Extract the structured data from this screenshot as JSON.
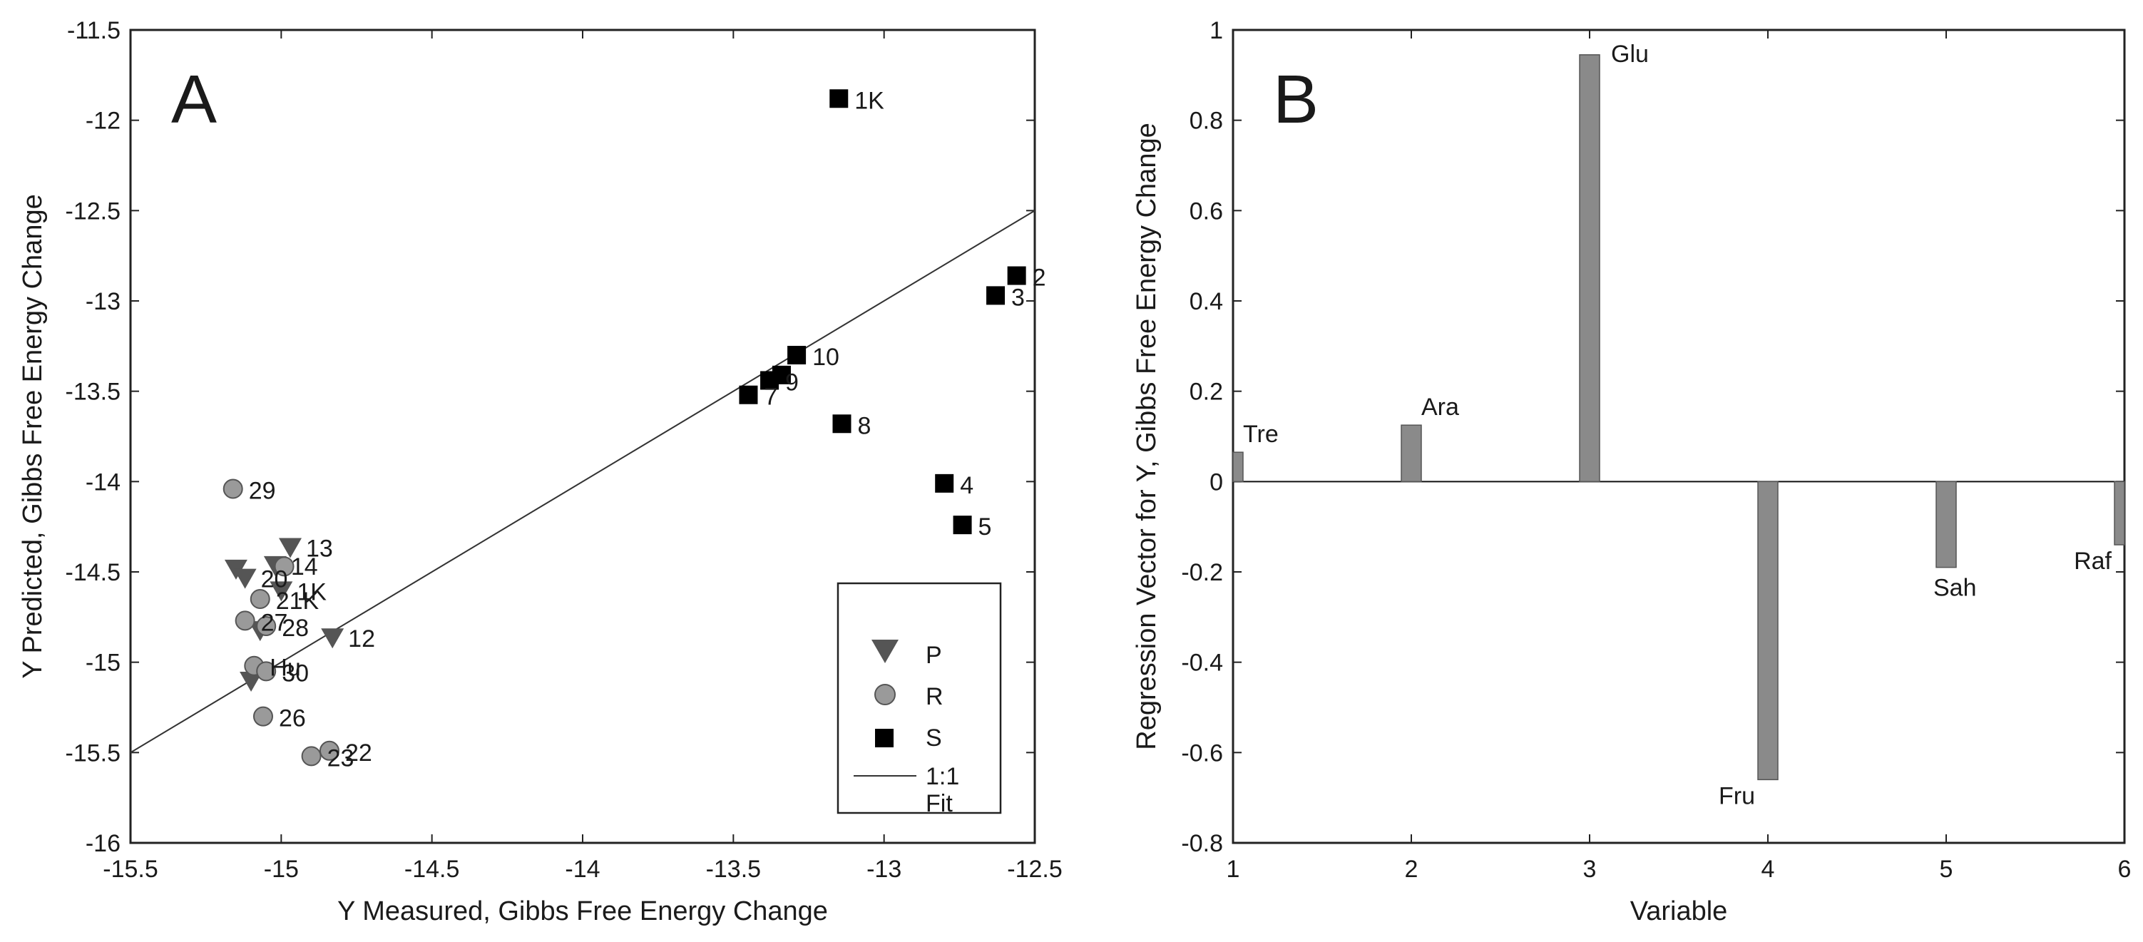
{
  "chart_data": [
    {
      "type": "scatter",
      "panel_label": "A",
      "xlabel": "Y Measured, Gibbs Free Energy Change",
      "ylabel": "Y Predicted, Gibbs Free Energy Change",
      "xlim": [
        -15.5,
        -12.5
      ],
      "ylim": [
        -16,
        -11.5
      ],
      "xticks": [
        -15.5,
        -15,
        -14.5,
        -14,
        -13.5,
        -13,
        -12.5
      ],
      "yticks": [
        -16,
        -15.5,
        -15,
        -14.5,
        -14,
        -13.5,
        -13,
        -12.5,
        -12,
        -11.5
      ],
      "legend_position": "bottom-right",
      "series": [
        {
          "name": "P",
          "marker": "triangle-down",
          "color": "#555555",
          "points": [
            {
              "x": -14.97,
              "y": -14.36,
              "label": "13"
            },
            {
              "x": -15.02,
              "y": -14.46,
              "label": "14"
            },
            {
              "x": -15.15,
              "y": -14.48,
              "label": ""
            },
            {
              "x": -15.12,
              "y": -14.53,
              "label": "20"
            },
            {
              "x": -15.0,
              "y": -14.6,
              "label": "1K"
            },
            {
              "x": -15.07,
              "y": -14.82,
              "label": ""
            },
            {
              "x": -14.83,
              "y": -14.86,
              "label": "12"
            },
            {
              "x": -15.1,
              "y": -15.1,
              "label": ""
            }
          ]
        },
        {
          "name": "R",
          "marker": "circle",
          "color": "#9a9a9a",
          "points": [
            {
              "x": -15.16,
              "y": -14.04,
              "label": "29"
            },
            {
              "x": -14.99,
              "y": -14.47,
              "label": ""
            },
            {
              "x": -15.07,
              "y": -14.65,
              "label": "21K"
            },
            {
              "x": -15.12,
              "y": -14.77,
              "label": "27"
            },
            {
              "x": -15.05,
              "y": -14.8,
              "label": "28"
            },
            {
              "x": -15.09,
              "y": -15.02,
              "label": "Hu"
            },
            {
              "x": -15.05,
              "y": -15.05,
              "label": "30"
            },
            {
              "x": -15.06,
              "y": -15.3,
              "label": "26"
            },
            {
              "x": -14.9,
              "y": -15.52,
              "label": "23"
            },
            {
              "x": -14.84,
              "y": -15.49,
              "label": "22"
            }
          ]
        },
        {
          "name": "S",
          "marker": "square",
          "color": "#000000",
          "points": [
            {
              "x": -13.15,
              "y": -11.88,
              "label": "1K"
            },
            {
              "x": -12.56,
              "y": -12.86,
              "label": "2"
            },
            {
              "x": -12.63,
              "y": -12.97,
              "label": "3"
            },
            {
              "x": -13.29,
              "y": -13.3,
              "label": "10"
            },
            {
              "x": -13.34,
              "y": -13.41,
              "label": ""
            },
            {
              "x": -13.38,
              "y": -13.44,
              "label": "9"
            },
            {
              "x": -13.45,
              "y": -13.52,
              "label": "7"
            },
            {
              "x": -13.14,
              "y": -13.68,
              "label": "8"
            },
            {
              "x": -12.8,
              "y": -14.01,
              "label": "4"
            },
            {
              "x": -12.74,
              "y": -14.24,
              "label": "5"
            }
          ]
        }
      ],
      "fit_line": {
        "name": "1:1 Fit",
        "legend_line1": "1:1",
        "legend_line2": "Fit",
        "x": [
          -15.5,
          -12.5
        ],
        "y": [
          -15.5,
          -12.5
        ],
        "color": "#333333"
      }
    },
    {
      "type": "bar",
      "panel_label": "B",
      "xlabel": "Variable",
      "ylabel": "Regression Vector for Y, Gibbs Free Energy Change",
      "xlim": [
        1,
        6
      ],
      "ylim": [
        -0.8,
        1
      ],
      "xticks": [
        1,
        2,
        3,
        4,
        5,
        6
      ],
      "yticks": [
        -0.8,
        -0.6,
        -0.4,
        -0.2,
        0,
        0.2,
        0.4,
        0.6,
        0.8,
        1
      ],
      "bar_color": "#8a8a8a",
      "bars": [
        {
          "x": 1,
          "value": 0.065,
          "label": "Tre"
        },
        {
          "x": 2,
          "value": 0.125,
          "label": "Ara"
        },
        {
          "x": 3,
          "value": 0.945,
          "label": "Glu"
        },
        {
          "x": 4,
          "value": -0.66,
          "label": "Fru"
        },
        {
          "x": 5,
          "value": -0.19,
          "label": "Sah"
        },
        {
          "x": 6,
          "value": -0.14,
          "label": "Raf"
        }
      ]
    }
  ]
}
